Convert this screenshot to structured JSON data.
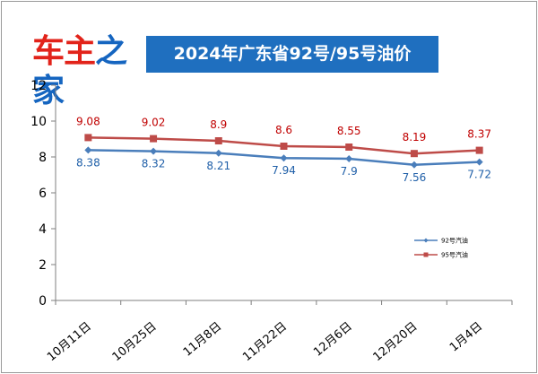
{
  "header": {
    "logo_text_a": "车主",
    "logo_text_b": "之家",
    "title": "2024年广东省92号/95号油价"
  },
  "colors": {
    "series_92": "#4a7ebb",
    "series_95": "#be4b48",
    "label_92": "#1f5fa8",
    "label_95": "#c00000",
    "title_bg": "#1f6fbf"
  },
  "chart_data": {
    "type": "line",
    "title": "2024年广东省92号/95号油价",
    "xlabel": "",
    "ylabel": "",
    "categories": [
      "10月11日",
      "10月25日",
      "11月8日",
      "11月22日",
      "12月6日",
      "12月20日",
      "1月4日"
    ],
    "ylim": [
      0,
      12
    ],
    "yticks": [
      0,
      2,
      4,
      6,
      8,
      10,
      12
    ],
    "grid": false,
    "legend_position": "right",
    "series": [
      {
        "name": "92号汽油",
        "marker": "diamond",
        "values": [
          8.38,
          8.32,
          8.21,
          7.94,
          7.9,
          7.56,
          7.72
        ],
        "labels": [
          "8.38",
          "8.32",
          "8.21",
          "7.94",
          "7.9",
          "7.56",
          "7.72"
        ]
      },
      {
        "name": "95号汽油",
        "marker": "square",
        "values": [
          9.08,
          9.02,
          8.9,
          8.6,
          8.55,
          8.19,
          8.37
        ],
        "labels": [
          "9.08",
          "9.02",
          "8.9",
          "8.6",
          "8.55",
          "8.19",
          "8.37"
        ]
      }
    ]
  }
}
